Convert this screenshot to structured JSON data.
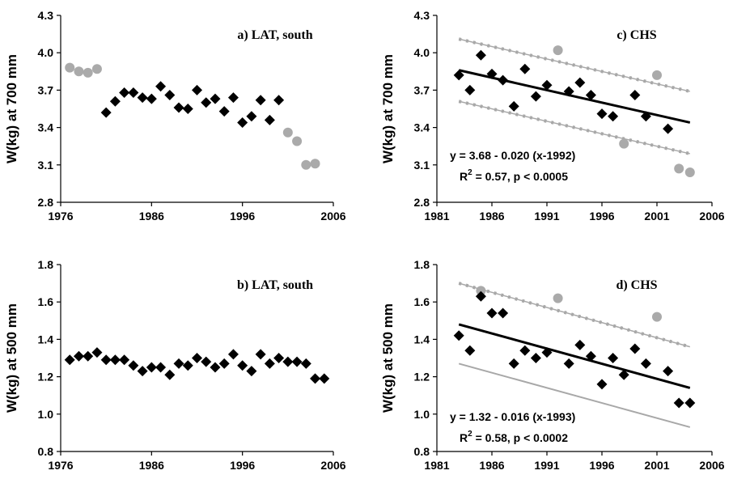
{
  "chart_data": [
    {
      "id": "a",
      "type": "scatter",
      "title": "a) LAT, south",
      "ylabel": "W(kg) at 700 mm",
      "xlim": [
        1976,
        2006
      ],
      "ylim": [
        2.8,
        4.3
      ],
      "xticks": [
        "1976",
        "1986",
        "1996",
        "2006"
      ],
      "yticks": [
        "2.8",
        "3.1",
        "3.4",
        "3.7",
        "4.0",
        "4.3"
      ],
      "series": [
        {
          "style": "gray-circle",
          "x": [
            1977,
            1978,
            1979,
            1980,
            2001,
            2002,
            2003,
            2004
          ],
          "y": [
            3.88,
            3.85,
            3.84,
            3.87,
            3.36,
            3.29,
            3.1,
            3.11
          ]
        },
        {
          "style": "black-diamond",
          "x": [
            1981,
            1982,
            1983,
            1984,
            1985,
            1986,
            1987,
            1988,
            1989,
            1990,
            1991,
            1992,
            1993,
            1994,
            1995,
            1996,
            1997,
            1998,
            1999,
            2000
          ],
          "y": [
            3.52,
            3.61,
            3.68,
            3.68,
            3.64,
            3.63,
            3.73,
            3.66,
            3.56,
            3.55,
            3.7,
            3.6,
            3.63,
            3.53,
            3.64,
            3.44,
            3.49,
            3.62,
            3.46,
            3.62
          ]
        }
      ]
    },
    {
      "id": "c",
      "type": "scatter",
      "title": "c) CHS",
      "ylabel": "W(kg) at 700 mm",
      "xlim": [
        1981,
        2006
      ],
      "ylim": [
        2.8,
        4.3
      ],
      "xticks": [
        "1981",
        "1986",
        "1991",
        "1996",
        "2001",
        "2006"
      ],
      "yticks": [
        "2.8",
        "3.1",
        "3.4",
        "3.7",
        "4.0",
        "4.3"
      ],
      "series": [
        {
          "style": "gray-circle",
          "x": [
            1992,
            1998,
            2001,
            2003,
            2004
          ],
          "y": [
            4.02,
            3.27,
            3.82,
            3.07,
            3.04
          ]
        },
        {
          "style": "black-diamond",
          "x": [
            1983,
            1984,
            1985,
            1986,
            1987,
            1988,
            1989,
            1990,
            1991,
            1993,
            1994,
            1995,
            1996,
            1997,
            1999,
            2000,
            2002
          ],
          "y": [
            3.82,
            3.7,
            3.98,
            3.83,
            3.78,
            3.57,
            3.87,
            3.65,
            3.74,
            3.69,
            3.76,
            3.66,
            3.51,
            3.49,
            3.66,
            3.49,
            3.39
          ]
        }
      ],
      "fit": {
        "x": [
          1983,
          2004
        ],
        "y": [
          3.86,
          3.44
        ]
      },
      "bands": [
        {
          "style": "gray-dotted",
          "x": [
            1983,
            2004
          ],
          "y": [
            4.11,
            3.69
          ]
        },
        {
          "style": "gray-dotted",
          "x": [
            1983,
            2004
          ],
          "y": [
            3.61,
            3.19
          ]
        }
      ],
      "equation": "y = 3.68 - 0.020 (x-1992)",
      "stats": {
        "r": "R",
        "sup": "2",
        "rest": " = 0.57, p < 0.0005"
      }
    },
    {
      "id": "b",
      "type": "scatter",
      "title": "b) LAT, south",
      "ylabel": "W(kg) at 500 mm",
      "xlim": [
        1976,
        2006
      ],
      "ylim": [
        0.8,
        1.8
      ],
      "xticks": [
        "1976",
        "1986",
        "1996",
        "2006"
      ],
      "yticks": [
        "0.8",
        "1.0",
        "1.2",
        "1.4",
        "1.6",
        "1.8"
      ],
      "series": [
        {
          "style": "black-diamond",
          "x": [
            1977,
            1978,
            1979,
            1980,
            1981,
            1982,
            1983,
            1984,
            1985,
            1986,
            1987,
            1988,
            1989,
            1990,
            1991,
            1992,
            1993,
            1994,
            1995,
            1996,
            1997,
            1998,
            1999,
            2000,
            2001,
            2002,
            2003,
            2004,
            2005
          ],
          "y": [
            1.29,
            1.31,
            1.31,
            1.33,
            1.29,
            1.29,
            1.29,
            1.26,
            1.23,
            1.25,
            1.25,
            1.21,
            1.27,
            1.26,
            1.3,
            1.28,
            1.25,
            1.27,
            1.32,
            1.26,
            1.23,
            1.32,
            1.27,
            1.3,
            1.28,
            1.28,
            1.27,
            1.19,
            1.19
          ]
        }
      ]
    },
    {
      "id": "d",
      "type": "scatter",
      "title": "d) CHS",
      "ylabel": "W(kg) at 500 mm",
      "xlim": [
        1981,
        2006
      ],
      "ylim": [
        0.8,
        1.8
      ],
      "xticks": [
        "1981",
        "1986",
        "1991",
        "1996",
        "2001",
        "2006"
      ],
      "yticks": [
        "0.8",
        "1.0",
        "1.2",
        "1.4",
        "1.6",
        "1.8"
      ],
      "series": [
        {
          "style": "gray-circle",
          "x": [
            1985,
            1992,
            2001
          ],
          "y": [
            1.66,
            1.62,
            1.52
          ]
        },
        {
          "style": "black-diamond",
          "x": [
            1983,
            1984,
            1985,
            1986,
            1987,
            1988,
            1989,
            1990,
            1991,
            1993,
            1994,
            1995,
            1996,
            1997,
            1998,
            1999,
            2000,
            2002,
            2003,
            2004
          ],
          "y": [
            1.42,
            1.34,
            1.63,
            1.54,
            1.54,
            1.27,
            1.34,
            1.3,
            1.33,
            1.27,
            1.37,
            1.31,
            1.16,
            1.3,
            1.21,
            1.35,
            1.27,
            1.23,
            1.06,
            1.06
          ]
        }
      ],
      "fit": {
        "x": [
          1983,
          2004
        ],
        "y": [
          1.48,
          1.14
        ]
      },
      "bands": [
        {
          "style": "gray-dotted",
          "x": [
            1983,
            2004
          ],
          "y": [
            1.7,
            1.36
          ]
        },
        {
          "style": "gray-solid",
          "x": [
            1983,
            2004
          ],
          "y": [
            1.27,
            0.93
          ]
        }
      ],
      "equation": "y = 1.32 - 0.016 (x-1993)",
      "stats": {
        "r": "R",
        "sup": "2",
        "rest": " = 0.58, p < 0.0002"
      }
    }
  ],
  "colors": {
    "black": "#000000",
    "gray": "#aaaaaa",
    "bandGray": "#a8a8a8"
  }
}
